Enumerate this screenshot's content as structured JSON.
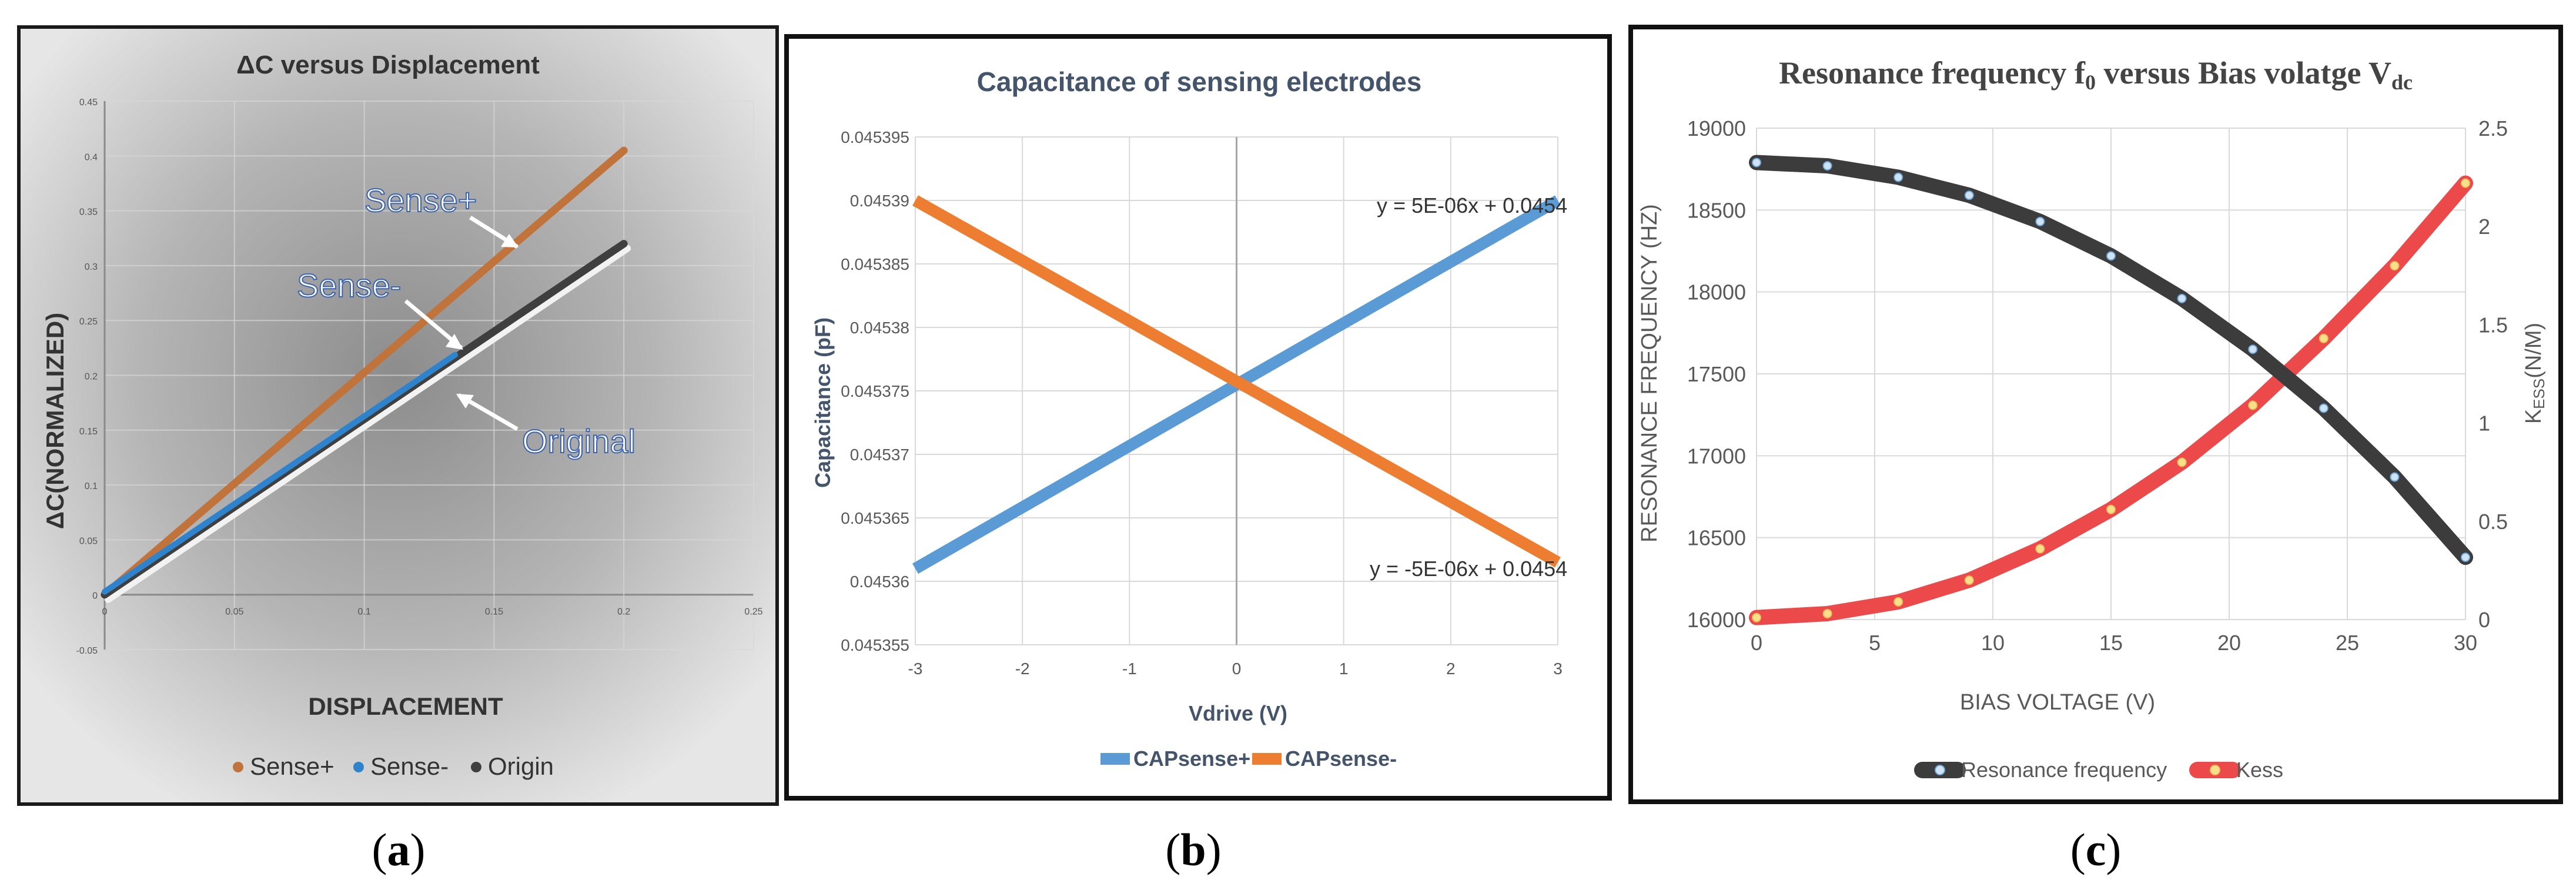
{
  "colors": {
    "sense_plus_a": "#c0733a",
    "sense_minus_a": "#2f83cc",
    "origin_a": "#3f3f3f",
    "cap_plus": "#5b9bd5",
    "cap_minus": "#ed7d31",
    "res_freq": "#3c3c3c",
    "kess": "#ec4a4a"
  },
  "chart_data": [
    {
      "type": "line",
      "panel": "a",
      "title": "ΔC versus Displacement",
      "xlabel": "DISPLACEMENT",
      "ylabel": "ΔC(NORMALIZED)",
      "xlim": [
        0,
        0.25
      ],
      "ylim": [
        -0.05,
        0.45
      ],
      "xticks": [
        "0",
        "0.05",
        "0.1",
        "0.15",
        "0.2",
        "0.25"
      ],
      "yticks": [
        "-0.05",
        "0",
        "0.05",
        "0.1",
        "0.15",
        "0.2",
        "0.25",
        "0.3",
        "0.35",
        "0.4",
        "0.45"
      ],
      "grid": true,
      "legend_position": "bottom",
      "series": [
        {
          "name": "Sense+",
          "x": [
            0,
            0.2
          ],
          "y": [
            0,
            0.405
          ]
        },
        {
          "name": "Sense-",
          "x": [
            0,
            0.2
          ],
          "y": [
            0,
            0.32
          ]
        },
        {
          "name": "Origin",
          "x": [
            0,
            0.2
          ],
          "y": [
            0,
            0.32
          ]
        }
      ],
      "annotations": [
        "Sense+",
        "Sense-",
        "Original"
      ]
    },
    {
      "type": "line",
      "panel": "b",
      "title": "Capacitance of sensing electrodes",
      "xlabel": "Vdrive (V)",
      "ylabel": "Capacitance (pF)",
      "xlim": [
        -3,
        3
      ],
      "ylim": [
        0.045355,
        0.045395
      ],
      "xticks": [
        "-3",
        "-2",
        "-1",
        "0",
        "1",
        "2",
        "3"
      ],
      "yticks": [
        "0.045355",
        "0.04536",
        "0.045365",
        "0.04537",
        "0.045375",
        "0.04538",
        "0.045385",
        "0.04539",
        "0.045395"
      ],
      "grid": true,
      "legend_position": "bottom",
      "series": [
        {
          "name": "CAPsense+",
          "x": [
            -3,
            3
          ],
          "y": [
            0.045361,
            0.04539
          ]
        },
        {
          "name": "CAPsense-",
          "x": [
            -3,
            3
          ],
          "y": [
            0.04539,
            0.0453615
          ]
        }
      ],
      "annotations": [
        "y = 5E-06x + 0.0454",
        "y = -5E-06x + 0.0454"
      ]
    },
    {
      "type": "line",
      "panel": "c",
      "title_main": "Resonance frequency f",
      "title_sub0": "0",
      "title_mid": " versus Bias volatge V",
      "title_sub1": "dc",
      "xlabel": "BIAS VOLTAGE (V)",
      "ylabel": "RESONANCE FREQUENCY (HZ)",
      "y2label_main": "K",
      "y2label_sub": "ESS",
      "y2label_unit": "(N/M)",
      "xlim": [
        0,
        30
      ],
      "ylim": [
        16000,
        19000
      ],
      "y2lim": [
        0,
        2.5
      ],
      "xticks": [
        "0",
        "5",
        "10",
        "15",
        "20",
        "25",
        "30"
      ],
      "yticks": [
        "16000",
        "16500",
        "17000",
        "17500",
        "18000",
        "18500",
        "19000"
      ],
      "y2ticks": [
        "0",
        "0.5",
        "1",
        "1.5",
        "2",
        "2.5"
      ],
      "grid": true,
      "legend_position": "bottom",
      "series": [
        {
          "name": "Resonance frequency",
          "axis": "left",
          "x": [
            0,
            3,
            6,
            9,
            12,
            15,
            18,
            21,
            24,
            27,
            30
          ],
          "y": [
            18790,
            18770,
            18700,
            18590,
            18430,
            18220,
            17960,
            17650,
            17290,
            16870,
            16380
          ]
        },
        {
          "name": "Kess",
          "axis": "right",
          "x": [
            0,
            3,
            6,
            9,
            12,
            15,
            18,
            21,
            24,
            27,
            30
          ],
          "y": [
            0.01,
            0.03,
            0.09,
            0.2,
            0.36,
            0.56,
            0.8,
            1.09,
            1.43,
            1.8,
            2.22
          ]
        }
      ]
    }
  ],
  "panel_labels": {
    "a": "a",
    "b": "b",
    "c": "c"
  }
}
